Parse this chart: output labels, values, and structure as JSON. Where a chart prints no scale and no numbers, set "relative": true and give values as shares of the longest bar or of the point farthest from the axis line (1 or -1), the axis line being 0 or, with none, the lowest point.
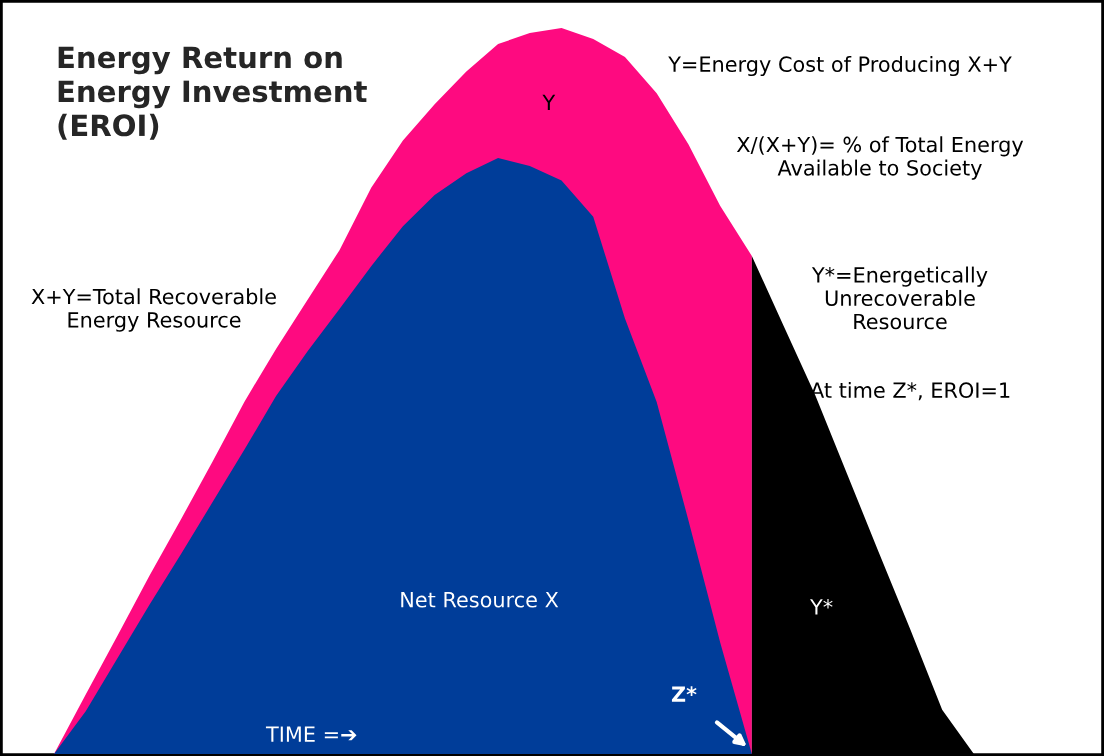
{
  "chart_data": {
    "type": "area",
    "relative": true,
    "title": "Energy Return on\nEnergy Investment\n(EROI)",
    "categories": [
      null,
      null,
      null,
      null,
      null,
      null,
      null,
      null,
      null,
      null,
      null,
      null,
      null,
      null,
      null,
      null,
      null,
      null,
      null,
      null,
      null,
      null,
      null,
      null,
      null,
      null,
      null,
      null,
      null,
      null
    ],
    "series": [
      {
        "name": "Y",
        "color": "#fe0a80",
        "values": [
          0,
          0.082,
          0.163,
          0.245,
          0.323,
          0.403,
          0.485,
          0.558,
          0.626,
          0.694,
          0.78,
          0.845,
          0.895,
          0.94,
          0.978,
          0.993,
          1.0,
          0.985,
          0.96,
          0.91,
          0.84,
          0.755,
          0.686,
          null,
          null,
          null,
          null,
          null,
          null,
          null
        ]
      },
      {
        "name": "Net Resource X",
        "color": "#003d99",
        "values": [
          0,
          0.059,
          0.132,
          0.205,
          0.275,
          0.347,
          0.419,
          0.493,
          0.555,
          0.613,
          0.672,
          0.727,
          0.77,
          0.8,
          0.821,
          0.81,
          0.79,
          0.74,
          0.6,
          0.485,
          0.322,
          0.154,
          0,
          null,
          null,
          null,
          null,
          null,
          null,
          null
        ]
      },
      {
        "name": "Y*",
        "color": "#000000",
        "values": [
          null,
          null,
          null,
          null,
          null,
          null,
          null,
          null,
          null,
          null,
          null,
          null,
          null,
          null,
          null,
          null,
          null,
          null,
          null,
          null,
          null,
          null,
          0.686,
          0.59,
          0.494,
          0.386,
          0.278,
          0.171,
          0.061,
          0
        ]
      }
    ],
    "annotations": [
      "Y=Energy Cost of Producing X+Y",
      "X/(X+Y)= % of Total Energy\nAvailable to Society",
      "X+Y=Total Recoverable\nEnergy Resource",
      "Y*=Energetically\nUnrecoverable\nResource",
      "At time Z*, EROI=1",
      "TIME =➔",
      "Z*"
    ],
    "legend": false
  }
}
